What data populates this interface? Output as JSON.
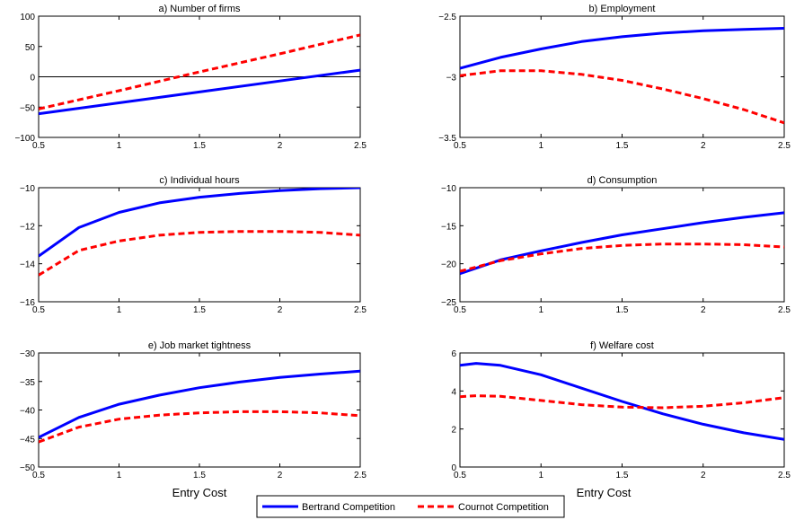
{
  "colors": {
    "bertrand": "#0000ff",
    "cournot": "#ff0000",
    "axis": "#000000"
  },
  "legend": {
    "bertrand": "Bertrand Competition",
    "cournot": "Cournot Competition"
  },
  "xlabel": "Entry Cost",
  "chart_data": [
    {
      "type": "line",
      "title": "a) Number of firms",
      "x": [
        0.5,
        1.0,
        1.5,
        2.0,
        2.5
      ],
      "xlim": [
        0.5,
        2.5
      ],
      "ylim": [
        -100,
        100
      ],
      "yticks": [
        -100,
        -50,
        0,
        50,
        100
      ],
      "xticks": [
        0.5,
        1,
        1.5,
        2,
        2.5
      ],
      "zero_line": true,
      "series": [
        {
          "name": "Bertrand Competition",
          "values": [
            -61,
            -43,
            -25,
            -7,
            11
          ]
        },
        {
          "name": "Cournot Competition",
          "values": [
            -53,
            -23,
            8,
            38,
            69
          ]
        }
      ]
    },
    {
      "type": "line",
      "title": "b) Employment",
      "x": [
        0.5,
        0.75,
        1.0,
        1.25,
        1.5,
        1.75,
        2.0,
        2.25,
        2.5
      ],
      "xlim": [
        0.5,
        2.5
      ],
      "ylim": [
        -3.5,
        -2.5
      ],
      "yticks": [
        -3.5,
        -3,
        -2.5
      ],
      "xticks": [
        0.5,
        1,
        1.5,
        2,
        2.5
      ],
      "series": [
        {
          "name": "Bertrand Competition",
          "values": [
            -2.93,
            -2.84,
            -2.77,
            -2.71,
            -2.67,
            -2.64,
            -2.62,
            -2.61,
            -2.6
          ]
        },
        {
          "name": "Cournot Competition",
          "values": [
            -2.99,
            -2.95,
            -2.95,
            -2.98,
            -3.03,
            -3.1,
            -3.18,
            -3.27,
            -3.38
          ]
        }
      ]
    },
    {
      "type": "line",
      "title": "c) Individual hours",
      "x": [
        0.5,
        0.75,
        1.0,
        1.25,
        1.5,
        1.75,
        2.0,
        2.25,
        2.5
      ],
      "xlim": [
        0.5,
        2.5
      ],
      "ylim": [
        -16,
        -10
      ],
      "yticks": [
        -16,
        -14,
        -12,
        -10
      ],
      "xticks": [
        0.5,
        1,
        1.5,
        2,
        2.5
      ],
      "series": [
        {
          "name": "Bertrand Competition",
          "values": [
            -13.6,
            -12.1,
            -11.3,
            -10.8,
            -10.5,
            -10.3,
            -10.15,
            -10.05,
            -10.0
          ]
        },
        {
          "name": "Cournot Competition",
          "values": [
            -14.6,
            -13.3,
            -12.8,
            -12.5,
            -12.35,
            -12.3,
            -12.3,
            -12.35,
            -12.5
          ]
        }
      ]
    },
    {
      "type": "line",
      "title": "d) Consumption",
      "x": [
        0.5,
        0.75,
        1.0,
        1.25,
        1.5,
        1.75,
        2.0,
        2.25,
        2.5
      ],
      "xlim": [
        0.5,
        2.5
      ],
      "ylim": [
        -25,
        -10
      ],
      "yticks": [
        -25,
        -20,
        -15,
        -10
      ],
      "xticks": [
        0.5,
        1,
        1.5,
        2,
        2.5
      ],
      "series": [
        {
          "name": "Bertrand Competition",
          "values": [
            -21.3,
            -19.5,
            -18.3,
            -17.2,
            -16.2,
            -15.4,
            -14.6,
            -13.9,
            -13.3
          ]
        },
        {
          "name": "Cournot Competition",
          "values": [
            -21.0,
            -19.6,
            -18.7,
            -18.0,
            -17.6,
            -17.4,
            -17.4,
            -17.5,
            -17.8
          ]
        }
      ]
    },
    {
      "type": "line",
      "title": "e) Job market tightness",
      "x": [
        0.5,
        0.75,
        1.0,
        1.25,
        1.5,
        1.75,
        2.0,
        2.25,
        2.5
      ],
      "xlim": [
        0.5,
        2.5
      ],
      "ylim": [
        -50,
        -30
      ],
      "yticks": [
        -50,
        -45,
        -40,
        -35,
        -30
      ],
      "xticks": [
        0.5,
        1,
        1.5,
        2,
        2.5
      ],
      "series": [
        {
          "name": "Bertrand Competition",
          "values": [
            -44.8,
            -41.3,
            -39.0,
            -37.4,
            -36.1,
            -35.1,
            -34.3,
            -33.7,
            -33.2
          ]
        },
        {
          "name": "Cournot Competition",
          "values": [
            -45.6,
            -43.0,
            -41.6,
            -40.9,
            -40.5,
            -40.3,
            -40.3,
            -40.5,
            -41.0
          ]
        }
      ]
    },
    {
      "type": "line",
      "title": "f) Welfare cost",
      "x": [
        0.5,
        0.6,
        0.75,
        1.0,
        1.25,
        1.5,
        1.75,
        2.0,
        2.25,
        2.5
      ],
      "xlim": [
        0.5,
        2.5
      ],
      "ylim": [
        0,
        6
      ],
      "yticks": [
        0,
        2,
        4,
        6
      ],
      "xticks": [
        0.5,
        1,
        1.5,
        2,
        2.5
      ],
      "series": [
        {
          "name": "Bertrand Competition",
          "values": [
            5.35,
            5.45,
            5.35,
            4.85,
            4.15,
            3.45,
            2.8,
            2.25,
            1.8,
            1.45
          ]
        },
        {
          "name": "Cournot Competition",
          "values": [
            3.7,
            3.75,
            3.72,
            3.5,
            3.28,
            3.15,
            3.12,
            3.2,
            3.38,
            3.65
          ]
        }
      ]
    }
  ]
}
